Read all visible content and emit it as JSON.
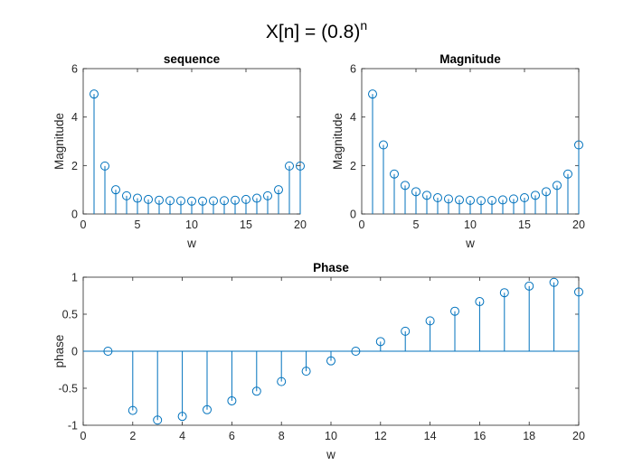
{
  "figure": {
    "suptitle_main": "X[n] = (0.8)",
    "suptitle_exp": "n"
  },
  "colors": {
    "stem": "#0072BD",
    "axes": "#262626",
    "background": "#ffffff"
  },
  "chart_data": [
    {
      "type": "scatter",
      "style": "stem",
      "title": "sequence",
      "xlabel": "w",
      "ylabel": "Magnitude",
      "xlim": [
        0,
        20
      ],
      "ylim": [
        0,
        6
      ],
      "xticks": [
        0,
        5,
        10,
        15,
        20
      ],
      "yticks": [
        0,
        2,
        4,
        6
      ],
      "grid": false,
      "x": [
        1,
        2,
        3,
        4,
        5,
        6,
        7,
        8,
        9,
        10,
        11,
        12,
        13,
        14,
        15,
        16,
        17,
        18,
        19,
        20
      ],
      "y": [
        4.95,
        1.98,
        1.0,
        0.75,
        0.65,
        0.6,
        0.57,
        0.55,
        0.54,
        0.53,
        0.53,
        0.54,
        0.55,
        0.57,
        0.6,
        0.65,
        0.75,
        1.0,
        1.98,
        1.98
      ]
    },
    {
      "type": "scatter",
      "style": "stem",
      "title": "Magnitude",
      "xlabel": "w",
      "ylabel": "Magnitude",
      "xlim": [
        0,
        20
      ],
      "ylim": [
        0,
        6
      ],
      "xticks": [
        0,
        5,
        10,
        15,
        20
      ],
      "yticks": [
        0,
        2,
        4,
        6
      ],
      "grid": false,
      "x": [
        1,
        2,
        3,
        4,
        5,
        6,
        7,
        8,
        9,
        10,
        11,
        12,
        13,
        14,
        15,
        16,
        17,
        18,
        19,
        20
      ],
      "y": [
        4.95,
        2.85,
        1.65,
        1.18,
        0.92,
        0.77,
        0.67,
        0.62,
        0.58,
        0.56,
        0.55,
        0.56,
        0.58,
        0.62,
        0.67,
        0.77,
        0.92,
        1.18,
        1.65,
        2.85
      ]
    },
    {
      "type": "scatter",
      "style": "stem",
      "title": "Phase",
      "xlabel": "w",
      "ylabel": "phase",
      "xlim": [
        0,
        20
      ],
      "ylim": [
        -1,
        1
      ],
      "xticks": [
        0,
        2,
        4,
        6,
        8,
        10,
        12,
        14,
        16,
        18,
        20
      ],
      "yticks": [
        -1,
        -0.5,
        0,
        0.5,
        1
      ],
      "grid": false,
      "x": [
        1,
        2,
        3,
        4,
        5,
        6,
        7,
        8,
        9,
        10,
        11,
        12,
        13,
        14,
        15,
        16,
        17,
        18,
        19,
        20
      ],
      "y": [
        0,
        -0.8,
        -0.93,
        -0.88,
        -0.79,
        -0.67,
        -0.54,
        -0.41,
        -0.27,
        -0.13,
        0,
        0.13,
        0.27,
        0.41,
        0.54,
        0.67,
        0.79,
        0.88,
        0.93,
        0.8
      ]
    }
  ]
}
